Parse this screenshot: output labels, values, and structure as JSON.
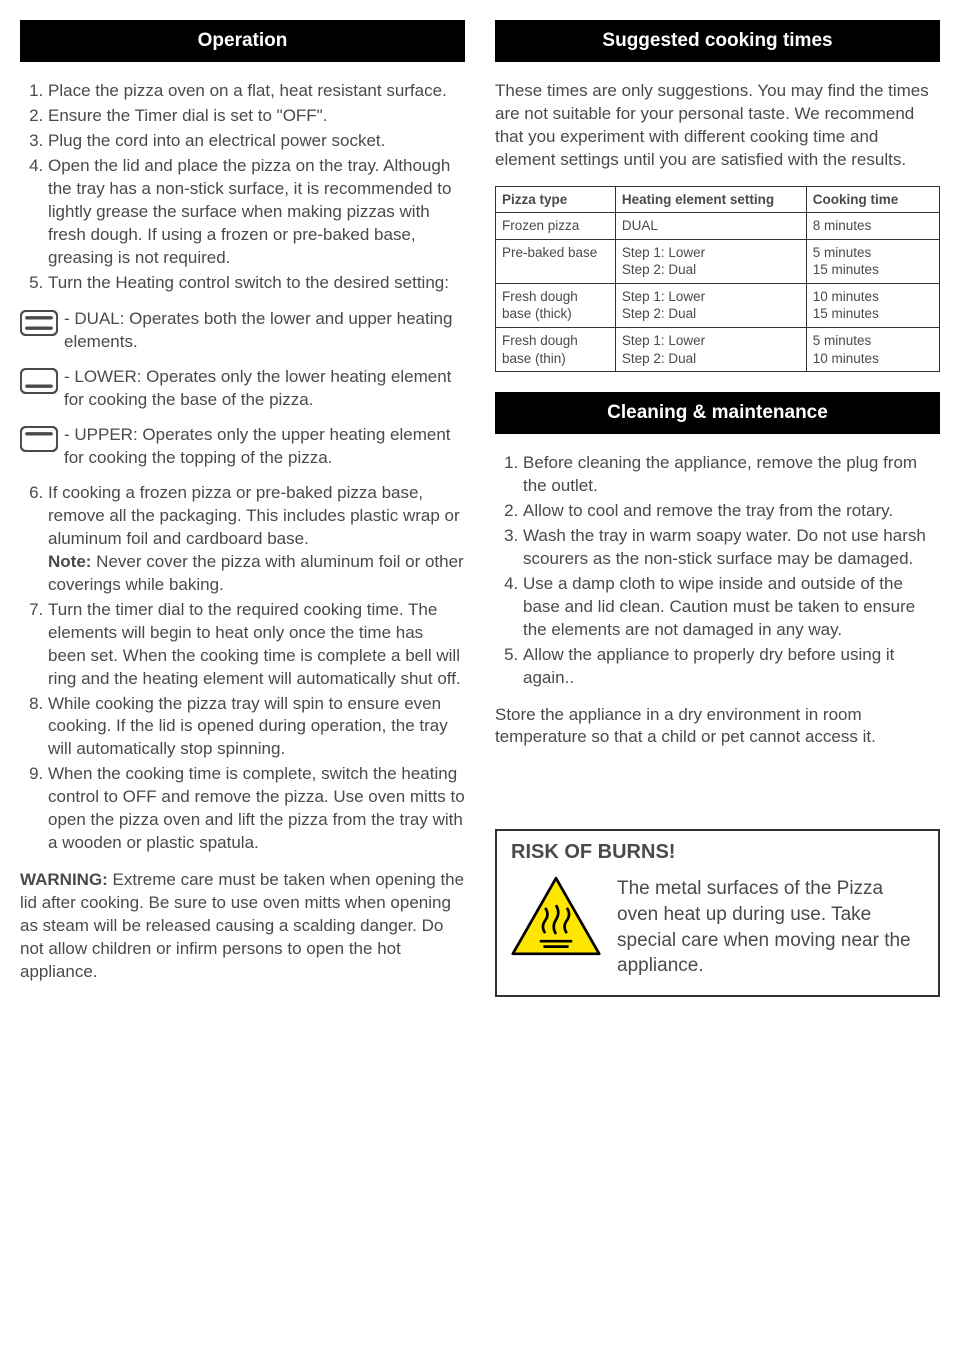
{
  "colors": {
    "header_bg": "#000000",
    "header_text": "#ffffff",
    "body_text": "#4a4a4a",
    "table_border": "#333333",
    "warning_border": "#333333",
    "triangle_fill": "#ffe600",
    "triangle_stroke": "#000000"
  },
  "left": {
    "header": "Operation",
    "steps_a": [
      "Place the pizza oven on a flat, heat resistant surface.",
      "Ensure the Timer dial is set to \"OFF\".",
      "Plug the cord into an electrical power socket.",
      "Open the lid and place the pizza on the tray. Although the tray has a non-stick surface, it is recommended to lightly grease the surface when making pizzas with fresh dough. If using a frozen or pre-baked base, greasing is not required.",
      "Turn the Heating control switch to the desired setting:"
    ],
    "modes": [
      {
        "name": "dual-icon",
        "text": " - DUAL: Operates both the lower and upper heating elements."
      },
      {
        "name": "lower-icon",
        "text": " - LOWER: Operates only the lower heating element for cooking the base of the pizza."
      },
      {
        "name": "upper-icon",
        "text": " - UPPER: Operates only the upper heating element for cooking the topping of the pizza."
      }
    ],
    "steps_b_start": 6,
    "steps_b": [
      "If cooking a frozen pizza or pre-baked pizza base, remove all the packaging. This includes plastic wrap or aluminum foil and cardboard base.\nNote: Never cover the pizza with aluminum foil or other coverings while baking.",
      "Turn the timer dial to the required cooking time. The elements will begin to heat only once the time has been set. When the cooking time is complete a bell will ring and the heating element will automatically shut off.",
      "While cooking the pizza tray will spin to ensure even cooking. If the lid is opened during operation, the tray will automatically stop spinning.",
      "When the cooking time is complete, switch the heating control to OFF and remove the pizza. Use oven mitts to open the pizza oven and lift the pizza from the tray with a wooden or plastic spatula."
    ],
    "warning_label": "WARNING:",
    "warning_text": " Extreme care must be taken when opening the lid after cooking. Be sure to use oven mitts when opening as steam will be released causing a scalding danger. Do not allow children or infirm persons to open the hot appliance."
  },
  "right": {
    "header1": "Suggested cooking times",
    "intro": "These times are only suggestions. You may find the times are not suitable for your personal taste. We recommend that you experiment with different cooking time and element settings until you are satisfied with the results.",
    "table": {
      "columns": [
        "Pizza type",
        "Heating element setting",
        "Cooking time"
      ],
      "col_widths": [
        "27%",
        "43%",
        "30%"
      ],
      "rows": [
        [
          "Frozen pizza",
          "DUAL",
          "8 minutes"
        ],
        [
          "Pre-baked base",
          "Step 1: Lower\nStep 2: Dual",
          "5 minutes\n15 minutes"
        ],
        [
          "Fresh dough base (thick)",
          "Step 1: Lower\nStep 2: Dual",
          "10 minutes\n15 minutes"
        ],
        [
          "Fresh dough base (thin)",
          "Step 1: Lower\nStep 2: Dual",
          "5 minutes\n10 minutes"
        ]
      ]
    },
    "header2": "Cleaning & maintenance",
    "clean_steps": [
      "Before cleaning the appliance, remove the plug from the outlet.",
      "Allow to cool and remove the tray from the rotary.",
      "Wash the tray in warm soapy water. Do not use harsh scourers as the non-stick surface may be damaged.",
      "Use a damp cloth to wipe inside and outside of the base and lid clean. Caution must be taken to ensure the elements are not damaged in any way.",
      "Allow the appliance to properly dry before using it again.."
    ],
    "store": "Store the appliance in a dry environment in room temperature so that a child or pet cannot access it.",
    "risk_title": "RISK OF BURNS!",
    "risk_text": "The metal surfaces of the Pizza oven heat up during use. Take special care when moving near the appliance."
  }
}
